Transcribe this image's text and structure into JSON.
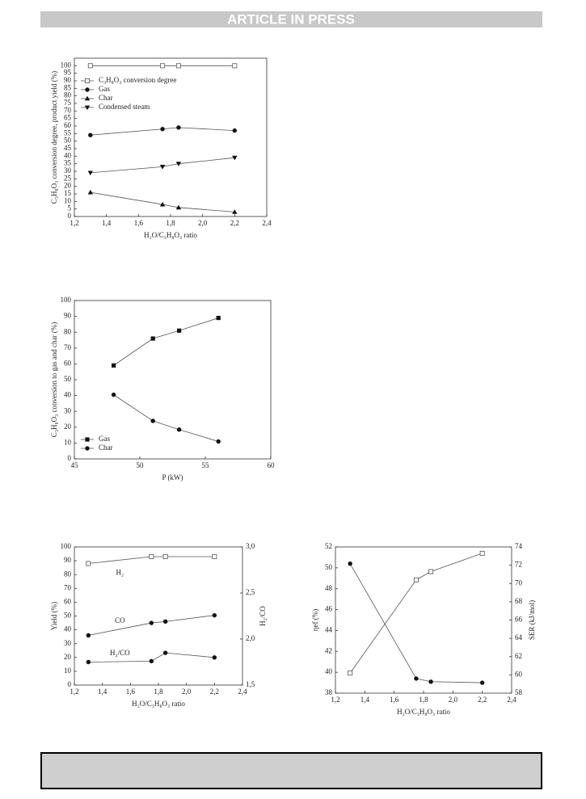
{
  "header": {
    "title": "ARTICLE IN PRESS"
  },
  "chart_data": [
    {
      "type": "line",
      "xlabel": "H₂O/C₃H₈O₃ ratio",
      "ylabel": "C₃H₈O₃ conversion degree, product yield (%)",
      "x": [
        1.3,
        1.75,
        1.85,
        2.2
      ],
      "xlim": [
        1.2,
        2.4
      ],
      "xticks": [
        {
          "value": 1.2,
          "label": "1,2"
        },
        {
          "value": 1.4,
          "label": "1,4"
        },
        {
          "value": 1.6,
          "label": "1,6"
        },
        {
          "value": 1.8,
          "label": "1,8"
        },
        {
          "value": 2.0,
          "label": "2,0"
        },
        {
          "value": 2.2,
          "label": "2,2"
        },
        {
          "value": 2.4,
          "label": "2,4"
        }
      ],
      "ylim": [
        0,
        105
      ],
      "yticks": [
        0,
        5,
        10,
        15,
        20,
        25,
        30,
        35,
        40,
        45,
        50,
        55,
        60,
        65,
        70,
        75,
        80,
        85,
        90,
        95,
        100
      ],
      "legend": "upper left",
      "series": [
        {
          "name": "C₃H₈O₃ conversion degree",
          "marker": "open-square",
          "color": "#555555",
          "values": [
            100,
            100,
            100,
            100
          ]
        },
        {
          "name": "Gas",
          "marker": "circle",
          "color": "#555555",
          "values": [
            54,
            58,
            59,
            57
          ]
        },
        {
          "name": "Char",
          "marker": "triangle",
          "color": "#555555",
          "values": [
            16,
            8,
            6,
            3
          ]
        },
        {
          "name": "Condensed steam",
          "marker": "triangle-down",
          "color": "#555555",
          "values": [
            29,
            33,
            35,
            39
          ]
        }
      ]
    },
    {
      "type": "line",
      "xlabel": "P (kW)",
      "ylabel": "C₃H₈O₃ conversion to gas and char (%)",
      "x": [
        48,
        51,
        53,
        56
      ],
      "xlim": [
        45,
        60
      ],
      "xticks": [
        45,
        50,
        55,
        60
      ],
      "ylim": [
        0,
        100
      ],
      "yticks": [
        0,
        10,
        20,
        30,
        40,
        50,
        60,
        70,
        80,
        90,
        100
      ],
      "legend": "lower left",
      "series": [
        {
          "name": "Gas",
          "marker": "square",
          "color": "#555555",
          "values": [
            59,
            76,
            81,
            89
          ]
        },
        {
          "name": "Char",
          "marker": "circle",
          "color": "#555555",
          "values": [
            40.5,
            24,
            18.5,
            11
          ]
        }
      ]
    },
    {
      "type": "line",
      "xlabel": "H₂O/C₃H₈O₃ ratio",
      "ylabel": "Yield (%)",
      "y2label": "H₂/CO",
      "x": [
        1.3,
        1.75,
        1.85,
        2.2
      ],
      "xlim": [
        1.2,
        2.4
      ],
      "xticks": [
        {
          "value": 1.2,
          "label": "1,2"
        },
        {
          "value": 1.4,
          "label": "1,4"
        },
        {
          "value": 1.6,
          "label": "1,6"
        },
        {
          "value": 1.8,
          "label": "1,8"
        },
        {
          "value": 2.0,
          "label": "2,0"
        },
        {
          "value": 2.2,
          "label": "2,2"
        },
        {
          "value": 2.4,
          "label": "2,4"
        }
      ],
      "ylim": [
        0,
        100
      ],
      "yticks": [
        0,
        10,
        20,
        30,
        40,
        50,
        60,
        70,
        80,
        90,
        100
      ],
      "y2lim": [
        1.5,
        3.0
      ],
      "y2ticks": [
        {
          "value": 1.5,
          "label": "1,5"
        },
        {
          "value": 2.0,
          "label": "2,0"
        },
        {
          "value": 2.5,
          "label": "2,5"
        },
        {
          "value": 3.0,
          "label": "3,0"
        }
      ],
      "series": [
        {
          "name": "H₂",
          "marker": "open-square",
          "color": "#555555",
          "values": [
            88,
            93,
            93,
            93
          ]
        },
        {
          "name": "CO",
          "marker": "circle",
          "color": "#555555",
          "values": [
            36,
            45,
            46,
            50.5
          ]
        },
        {
          "name": "H₂/CO",
          "marker": "circle",
          "color": "#555555",
          "axis": "y2",
          "values": [
            1.75,
            1.76,
            1.85,
            1.8
          ]
        }
      ]
    },
    {
      "type": "line",
      "xlabel": "H₂O/C₃H₈O₃ ratio",
      "ylabel": "ηef (%)",
      "y2label": "SER (kJ/mol)",
      "x": [
        1.3,
        1.75,
        1.85,
        2.2
      ],
      "xlim": [
        1.2,
        2.4
      ],
      "xticks": [
        {
          "value": 1.2,
          "label": "1,2"
        },
        {
          "value": 1.4,
          "label": "1,4"
        },
        {
          "value": 1.6,
          "label": "1,6"
        },
        {
          "value": 1.8,
          "label": "1,8"
        },
        {
          "value": 2.0,
          "label": "2,0"
        },
        {
          "value": 2.2,
          "label": "2,2"
        },
        {
          "value": 2.4,
          "label": "2,4"
        }
      ],
      "ylim": [
        38,
        52
      ],
      "yticks": [
        38,
        40,
        42,
        44,
        46,
        48,
        50,
        52
      ],
      "y2lim": [
        58,
        74
      ],
      "y2ticks": [
        58,
        60,
        62,
        64,
        66,
        68,
        70,
        72,
        74
      ],
      "series": [
        {
          "marker": "circle",
          "color": "#555555",
          "values": [
            50.4,
            39.4,
            39.1,
            39.0
          ]
        },
        {
          "marker": "open-square",
          "color": "#555555",
          "axis": "y2",
          "values": [
            60.2,
            70.4,
            71.3,
            73.3
          ]
        }
      ]
    }
  ]
}
